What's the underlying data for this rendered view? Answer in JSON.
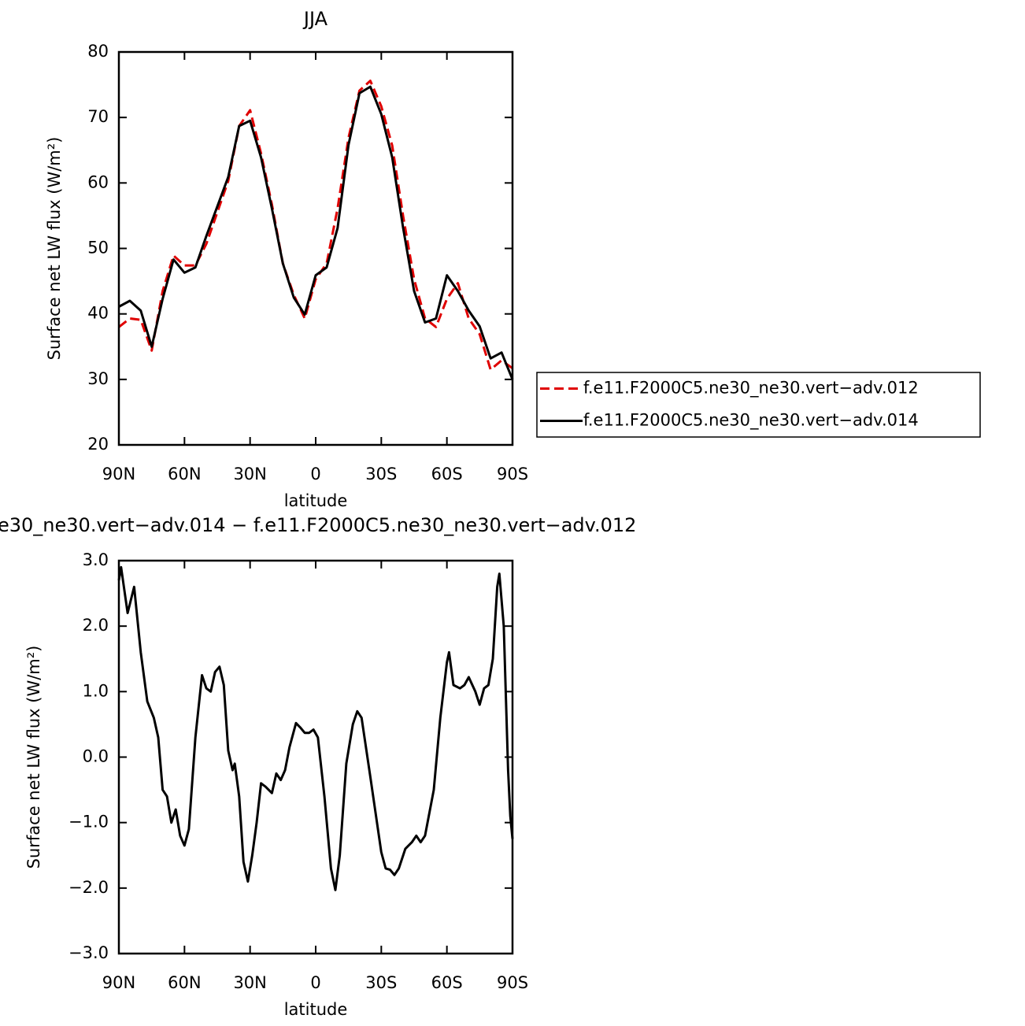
{
  "chart_data": [
    {
      "type": "line",
      "title": "JJA",
      "xlabel": "latitude",
      "ylabel": "Surface net LW flux (W/m²)",
      "x": [
        90,
        85,
        80,
        75,
        70,
        65,
        60,
        55,
        50,
        45,
        40,
        35,
        30,
        25,
        20,
        15,
        10,
        5,
        0,
        -5,
        -10,
        -15,
        -20,
        -25,
        -30,
        -35,
        -40,
        -45,
        -50,
        -55,
        -60,
        -65,
        -70,
        -75,
        -80,
        -85,
        -90
      ],
      "series": [
        {
          "name": "f.e11.F2000C5.ne30_ne30.vert−adv.012",
          "color": "#e00000",
          "linestyle": "dashed",
          "values": [
            38.0,
            39.3,
            39.1,
            34.4,
            43.5,
            48.9,
            47.4,
            47.4,
            50.7,
            55.5,
            60.3,
            68.7,
            71.1,
            64.5,
            56.7,
            47.7,
            42.9,
            39.3,
            45.3,
            47.7,
            56.1,
            66.9,
            74.1,
            75.6,
            71.7,
            65.7,
            54.9,
            45.3,
            39.3,
            38.0,
            42.3,
            44.7,
            39.3,
            36.9,
            31.5,
            32.9,
            31.7
          ]
        },
        {
          "name": "f.e11.F2000C5.ne30_ne30.vert−adv.014",
          "color": "#000000",
          "linestyle": "solid",
          "values": [
            41.1,
            42.0,
            40.5,
            35.0,
            42.3,
            48.3,
            46.3,
            47.1,
            51.9,
            56.4,
            60.9,
            68.7,
            69.5,
            63.9,
            56.1,
            47.7,
            42.5,
            39.9,
            45.9,
            47.1,
            53.1,
            65.8,
            73.7,
            74.7,
            70.5,
            63.9,
            53.1,
            43.5,
            38.7,
            39.3,
            45.9,
            43.5,
            40.5,
            38.1,
            33.2,
            34.1,
            30.0
          ]
        }
      ],
      "xlim": [
        90,
        -90
      ],
      "xticks": [
        {
          "value": 90,
          "label": "90N"
        },
        {
          "value": 60,
          "label": "60N"
        },
        {
          "value": 30,
          "label": "30N"
        },
        0,
        {
          "value": -30,
          "label": "30S"
        },
        {
          "value": -60,
          "label": "60S"
        },
        {
          "value": -90,
          "label": "90S"
        }
      ],
      "ylim": [
        20,
        80
      ],
      "yticks": [
        20,
        30,
        40,
        50,
        60,
        70,
        80
      ],
      "legend": "right"
    },
    {
      "type": "line",
      "title": "e30_ne30.vert−adv.014 − f.e11.F2000C5.ne30_ne30.vert−adv.012",
      "xlabel": "latitude",
      "ylabel": "Surface net LW flux (W/m²)",
      "x": [
        90,
        89,
        86,
        83,
        80,
        77,
        74,
        72,
        70,
        68,
        66,
        64,
        62,
        60,
        58,
        55,
        52,
        50,
        48,
        46,
        44,
        42,
        40,
        38,
        37,
        35,
        33,
        31,
        29,
        27,
        25,
        23,
        20,
        18,
        16,
        14,
        12,
        9,
        7,
        5,
        3,
        1,
        -1,
        -4,
        -7,
        -9,
        -11,
        -14,
        -17,
        -19,
        -21,
        -25,
        -30,
        -32,
        -34,
        -36,
        -38,
        -41,
        -44,
        -46,
        -48,
        -50,
        -54,
        -57,
        -60,
        -61,
        -63,
        -66,
        -68,
        -70,
        -73,
        -75,
        -77,
        -79,
        -81,
        -83,
        -84,
        -86,
        -88,
        -89,
        -90
      ],
      "values": [
        2.7,
        2.9,
        2.2,
        2.6,
        1.6,
        0.85,
        0.6,
        0.3,
        -0.5,
        -0.6,
        -1.0,
        -0.8,
        -1.2,
        -1.35,
        -1.1,
        0.3,
        1.25,
        1.05,
        1.0,
        1.3,
        1.38,
        1.1,
        0.1,
        -0.2,
        -0.1,
        -0.6,
        -1.6,
        -1.9,
        -1.5,
        -1.0,
        -0.4,
        -0.45,
        -0.55,
        -0.25,
        -0.35,
        -0.2,
        0.15,
        0.52,
        0.45,
        0.37,
        0.37,
        0.42,
        0.3,
        -0.6,
        -1.7,
        -2.03,
        -1.5,
        -0.1,
        0.5,
        0.7,
        0.6,
        -0.3,
        -1.45,
        -1.7,
        -1.72,
        -1.8,
        -1.7,
        -1.4,
        -1.3,
        -1.2,
        -1.3,
        -1.2,
        -0.5,
        0.6,
        1.45,
        1.6,
        1.1,
        1.05,
        1.1,
        1.22,
        1.0,
        0.8,
        1.05,
        1.1,
        1.5,
        2.6,
        2.8,
        2.0,
        -0.2,
        -0.9,
        -1.25
      ],
      "color": "#000000",
      "xlim": [
        90,
        -90
      ],
      "xticks": [
        {
          "value": 90,
          "label": "90N"
        },
        {
          "value": 60,
          "label": "60N"
        },
        {
          "value": 30,
          "label": "30N"
        },
        0,
        {
          "value": -30,
          "label": "30S"
        },
        {
          "value": -60,
          "label": "60S"
        },
        {
          "value": -90,
          "label": "90S"
        }
      ],
      "ylim": [
        -3,
        3
      ],
      "yticks": [
        {
          "value": -3,
          "label": "−3.0"
        },
        {
          "value": -2,
          "label": "−2.0"
        },
        {
          "value": -1,
          "label": "−1.0"
        },
        {
          "value": 0,
          "label": "0.0"
        },
        {
          "value": 1,
          "label": "1.0"
        },
        {
          "value": 2,
          "label": "2.0"
        },
        {
          "value": 3,
          "label": "3.0"
        }
      ]
    }
  ]
}
